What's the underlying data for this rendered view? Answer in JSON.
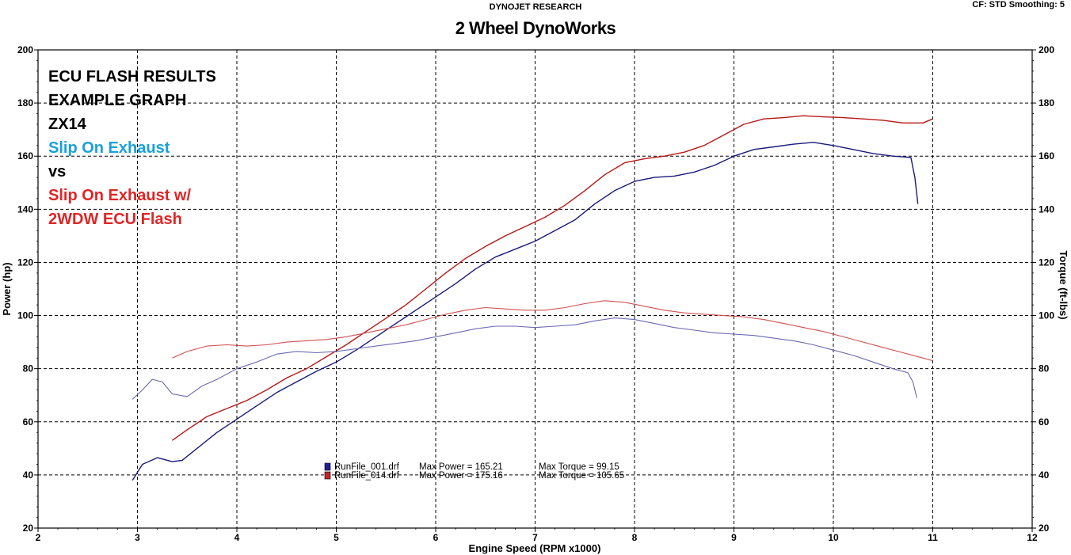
{
  "header": {
    "company": "DYNOJET RESEARCH",
    "settings": "CF: STD  Smoothing: 5",
    "shop": "2 Wheel DynoWorks"
  },
  "annotations": [
    {
      "text": "ECU FLASH RESULTS",
      "color": "#000000"
    },
    {
      "text": "EXAMPLE GRAPH",
      "color": "#000000"
    },
    {
      "text": "ZX14",
      "color": "#000000"
    },
    {
      "text": "Slip On Exhaust",
      "color": "#1aa0dc"
    },
    {
      "text": "vs",
      "color": "#000000"
    },
    {
      "text": "Slip On Exhaust w/",
      "color": "#e02525"
    },
    {
      "text": "2WDW ECU Flash",
      "color": "#e02525"
    }
  ],
  "chart_data": {
    "type": "line",
    "title": "2 Wheel DynoWorks",
    "xlabel": "Engine Speed (RPM x1000)",
    "ylabel": "Power (hp)",
    "y2label": "Torque (ft-lbs)",
    "xlim": [
      2,
      12
    ],
    "ylim": [
      20,
      200
    ],
    "y2lim": [
      20,
      200
    ],
    "xticks": [
      2,
      3,
      4,
      5,
      6,
      7,
      8,
      9,
      10,
      11,
      12
    ],
    "yticks": [
      20,
      40,
      60,
      80,
      100,
      120,
      140,
      160,
      180,
      200
    ],
    "grid": true,
    "legend": [
      {
        "file": "RunFile_001.drf",
        "max_power_label": "Max Power = 165.21",
        "max_torque_label": "Max Torque = 99.15",
        "color": "#1f1f8f"
      },
      {
        "file": "RunFile_014.drf",
        "max_power_label": "Max Power = 175.16",
        "max_torque_label": "Max Torque = 105.65",
        "color": "#c0282a"
      }
    ],
    "series": [
      {
        "name": "RunFile_001.drf",
        "measure": "power",
        "color": "#1a1a7a",
        "points": [
          [
            2.95,
            38
          ],
          [
            3.05,
            44
          ],
          [
            3.2,
            46.5
          ],
          [
            3.35,
            45
          ],
          [
            3.45,
            45.5
          ],
          [
            3.6,
            50
          ],
          [
            3.8,
            56
          ],
          [
            4.0,
            61
          ],
          [
            4.2,
            66
          ],
          [
            4.4,
            71
          ],
          [
            4.6,
            75
          ],
          [
            4.8,
            79
          ],
          [
            5.0,
            82.5
          ],
          [
            5.2,
            87
          ],
          [
            5.4,
            92
          ],
          [
            5.6,
            97
          ],
          [
            5.8,
            102
          ],
          [
            6.0,
            107
          ],
          [
            6.2,
            112
          ],
          [
            6.4,
            117.5
          ],
          [
            6.6,
            122
          ],
          [
            6.8,
            125
          ],
          [
            7.0,
            128
          ],
          [
            7.2,
            132
          ],
          [
            7.4,
            136
          ],
          [
            7.6,
            142
          ],
          [
            7.8,
            147
          ],
          [
            8.0,
            150.5
          ],
          [
            8.2,
            152
          ],
          [
            8.4,
            152.5
          ],
          [
            8.6,
            154
          ],
          [
            8.8,
            156.5
          ],
          [
            9.0,
            160
          ],
          [
            9.2,
            162.5
          ],
          [
            9.4,
            163.5
          ],
          [
            9.6,
            164.5
          ],
          [
            9.8,
            165.2
          ],
          [
            10.0,
            164
          ],
          [
            10.2,
            162.5
          ],
          [
            10.4,
            161
          ],
          [
            10.6,
            160
          ],
          [
            10.78,
            159.5
          ],
          [
            10.82,
            152
          ],
          [
            10.85,
            142
          ]
        ]
      },
      {
        "name": "RunFile_014.drf",
        "measure": "power",
        "color": "#b81818",
        "points": [
          [
            3.35,
            53
          ],
          [
            3.5,
            57
          ],
          [
            3.7,
            62
          ],
          [
            3.9,
            65
          ],
          [
            4.1,
            68
          ],
          [
            4.3,
            72
          ],
          [
            4.5,
            76.5
          ],
          [
            4.7,
            80
          ],
          [
            4.9,
            84.5
          ],
          [
            5.1,
            89
          ],
          [
            5.3,
            94
          ],
          [
            5.5,
            99
          ],
          [
            5.7,
            104
          ],
          [
            5.9,
            110
          ],
          [
            6.1,
            116
          ],
          [
            6.3,
            121.5
          ],
          [
            6.5,
            126
          ],
          [
            6.7,
            130
          ],
          [
            6.9,
            133.5
          ],
          [
            7.1,
            137
          ],
          [
            7.3,
            141.5
          ],
          [
            7.5,
            147
          ],
          [
            7.7,
            153
          ],
          [
            7.9,
            157.5
          ],
          [
            8.1,
            159
          ],
          [
            8.3,
            160
          ],
          [
            8.5,
            161.5
          ],
          [
            8.7,
            164
          ],
          [
            8.9,
            168
          ],
          [
            9.1,
            172
          ],
          [
            9.3,
            174
          ],
          [
            9.5,
            174.5
          ],
          [
            9.7,
            175.2
          ],
          [
            9.9,
            174.8
          ],
          [
            10.1,
            174.5
          ],
          [
            10.3,
            174
          ],
          [
            10.5,
            173.5
          ],
          [
            10.7,
            172.5
          ],
          [
            10.9,
            172.5
          ],
          [
            11.0,
            174
          ]
        ]
      },
      {
        "name": "RunFile_001.drf",
        "measure": "torque",
        "color": "#6a6ab0",
        "points": [
          [
            2.95,
            68.5
          ],
          [
            3.05,
            72
          ],
          [
            3.15,
            76
          ],
          [
            3.25,
            75
          ],
          [
            3.35,
            70.5
          ],
          [
            3.5,
            69.5
          ],
          [
            3.65,
            73.5
          ],
          [
            3.8,
            76
          ],
          [
            4.0,
            80
          ],
          [
            4.2,
            82.5
          ],
          [
            4.4,
            85.5
          ],
          [
            4.6,
            86.5
          ],
          [
            4.8,
            86
          ],
          [
            5.0,
            86.5
          ],
          [
            5.2,
            87.5
          ],
          [
            5.4,
            88.5
          ],
          [
            5.6,
            89.5
          ],
          [
            5.8,
            90.5
          ],
          [
            6.0,
            92
          ],
          [
            6.2,
            93.5
          ],
          [
            6.4,
            95
          ],
          [
            6.6,
            96
          ],
          [
            6.8,
            96
          ],
          [
            7.0,
            95.5
          ],
          [
            7.2,
            96
          ],
          [
            7.4,
            96.5
          ],
          [
            7.6,
            98
          ],
          [
            7.8,
            99.1
          ],
          [
            8.0,
            98.5
          ],
          [
            8.2,
            97
          ],
          [
            8.4,
            95.5
          ],
          [
            8.6,
            94.5
          ],
          [
            8.8,
            93.5
          ],
          [
            9.0,
            93
          ],
          [
            9.2,
            92.5
          ],
          [
            9.4,
            91.5
          ],
          [
            9.6,
            90.5
          ],
          [
            9.8,
            89
          ],
          [
            10.0,
            87
          ],
          [
            10.2,
            85
          ],
          [
            10.4,
            82.5
          ],
          [
            10.6,
            80
          ],
          [
            10.75,
            78.5
          ],
          [
            10.8,
            75
          ],
          [
            10.84,
            69
          ]
        ]
      },
      {
        "name": "RunFile_014.drf",
        "measure": "torque",
        "color": "#d05050",
        "points": [
          [
            3.35,
            84
          ],
          [
            3.5,
            86.5
          ],
          [
            3.7,
            88.5
          ],
          [
            3.9,
            89
          ],
          [
            4.1,
            88.5
          ],
          [
            4.3,
            89
          ],
          [
            4.5,
            90
          ],
          [
            4.7,
            90.5
          ],
          [
            4.9,
            91
          ],
          [
            5.1,
            92
          ],
          [
            5.3,
            93.5
          ],
          [
            5.5,
            95
          ],
          [
            5.7,
            96.5
          ],
          [
            5.9,
            98.5
          ],
          [
            6.1,
            100.5
          ],
          [
            6.3,
            102
          ],
          [
            6.5,
            103
          ],
          [
            6.7,
            102.5
          ],
          [
            6.9,
            102
          ],
          [
            7.1,
            102
          ],
          [
            7.3,
            103
          ],
          [
            7.5,
            104.5
          ],
          [
            7.7,
            105.6
          ],
          [
            7.9,
            105
          ],
          [
            8.1,
            103.5
          ],
          [
            8.3,
            102
          ],
          [
            8.5,
            101
          ],
          [
            8.7,
            100.5
          ],
          [
            8.9,
            100
          ],
          [
            9.1,
            99.5
          ],
          [
            9.3,
            98.5
          ],
          [
            9.5,
            97
          ],
          [
            9.7,
            95.5
          ],
          [
            9.9,
            94
          ],
          [
            10.1,
            92
          ],
          [
            10.3,
            90
          ],
          [
            10.5,
            88
          ],
          [
            10.7,
            86
          ],
          [
            10.9,
            84
          ],
          [
            11.0,
            83
          ]
        ]
      }
    ]
  }
}
